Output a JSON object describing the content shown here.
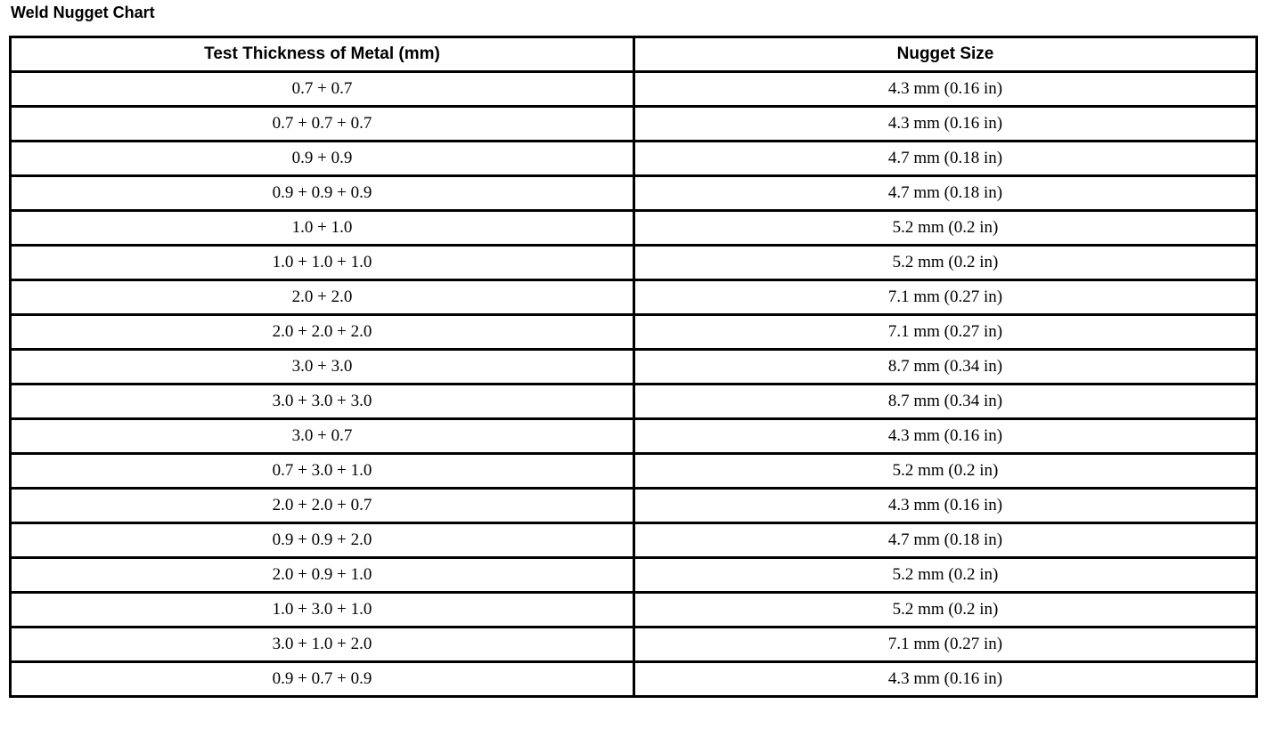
{
  "title": "Weld Nugget Chart",
  "table": {
    "headers": [
      "Test Thickness of Metal (mm)",
      "Nugget Size"
    ],
    "rows": [
      [
        "0.7 + 0.7",
        "4.3 mm (0.16 in)"
      ],
      [
        "0.7 + 0.7 + 0.7",
        "4.3 mm (0.16 in)"
      ],
      [
        "0.9 + 0.9",
        "4.7 mm (0.18 in)"
      ],
      [
        "0.9 + 0.9 + 0.9",
        "4.7 mm (0.18 in)"
      ],
      [
        "1.0 + 1.0",
        "5.2 mm (0.2 in)"
      ],
      [
        "1.0 + 1.0 + 1.0",
        "5.2 mm (0.2 in)"
      ],
      [
        "2.0 + 2.0",
        "7.1 mm (0.27 in)"
      ],
      [
        "2.0 + 2.0 + 2.0",
        "7.1 mm (0.27 in)"
      ],
      [
        "3.0 + 3.0",
        "8.7 mm (0.34 in)"
      ],
      [
        "3.0 + 3.0 + 3.0",
        "8.7 mm (0.34 in)"
      ],
      [
        "3.0 + 0.7",
        "4.3 mm (0.16 in)"
      ],
      [
        "0.7 + 3.0 + 1.0",
        "5.2 mm (0.2 in)"
      ],
      [
        "2.0 + 2.0 + 0.7",
        "4.3 mm (0.16 in)"
      ],
      [
        "0.9 + 0.9 + 2.0",
        "4.7 mm (0.18 in)"
      ],
      [
        "2.0 + 0.9 + 1.0",
        "5.2 mm (0.2 in)"
      ],
      [
        "1.0 + 3.0 + 1.0",
        "5.2 mm (0.2 in)"
      ],
      [
        "3.0 + 1.0 + 2.0",
        "7.1 mm (0.27 in)"
      ],
      [
        "0.9 + 0.7 + 0.9",
        "4.3 mm (0.16 in)"
      ]
    ]
  }
}
